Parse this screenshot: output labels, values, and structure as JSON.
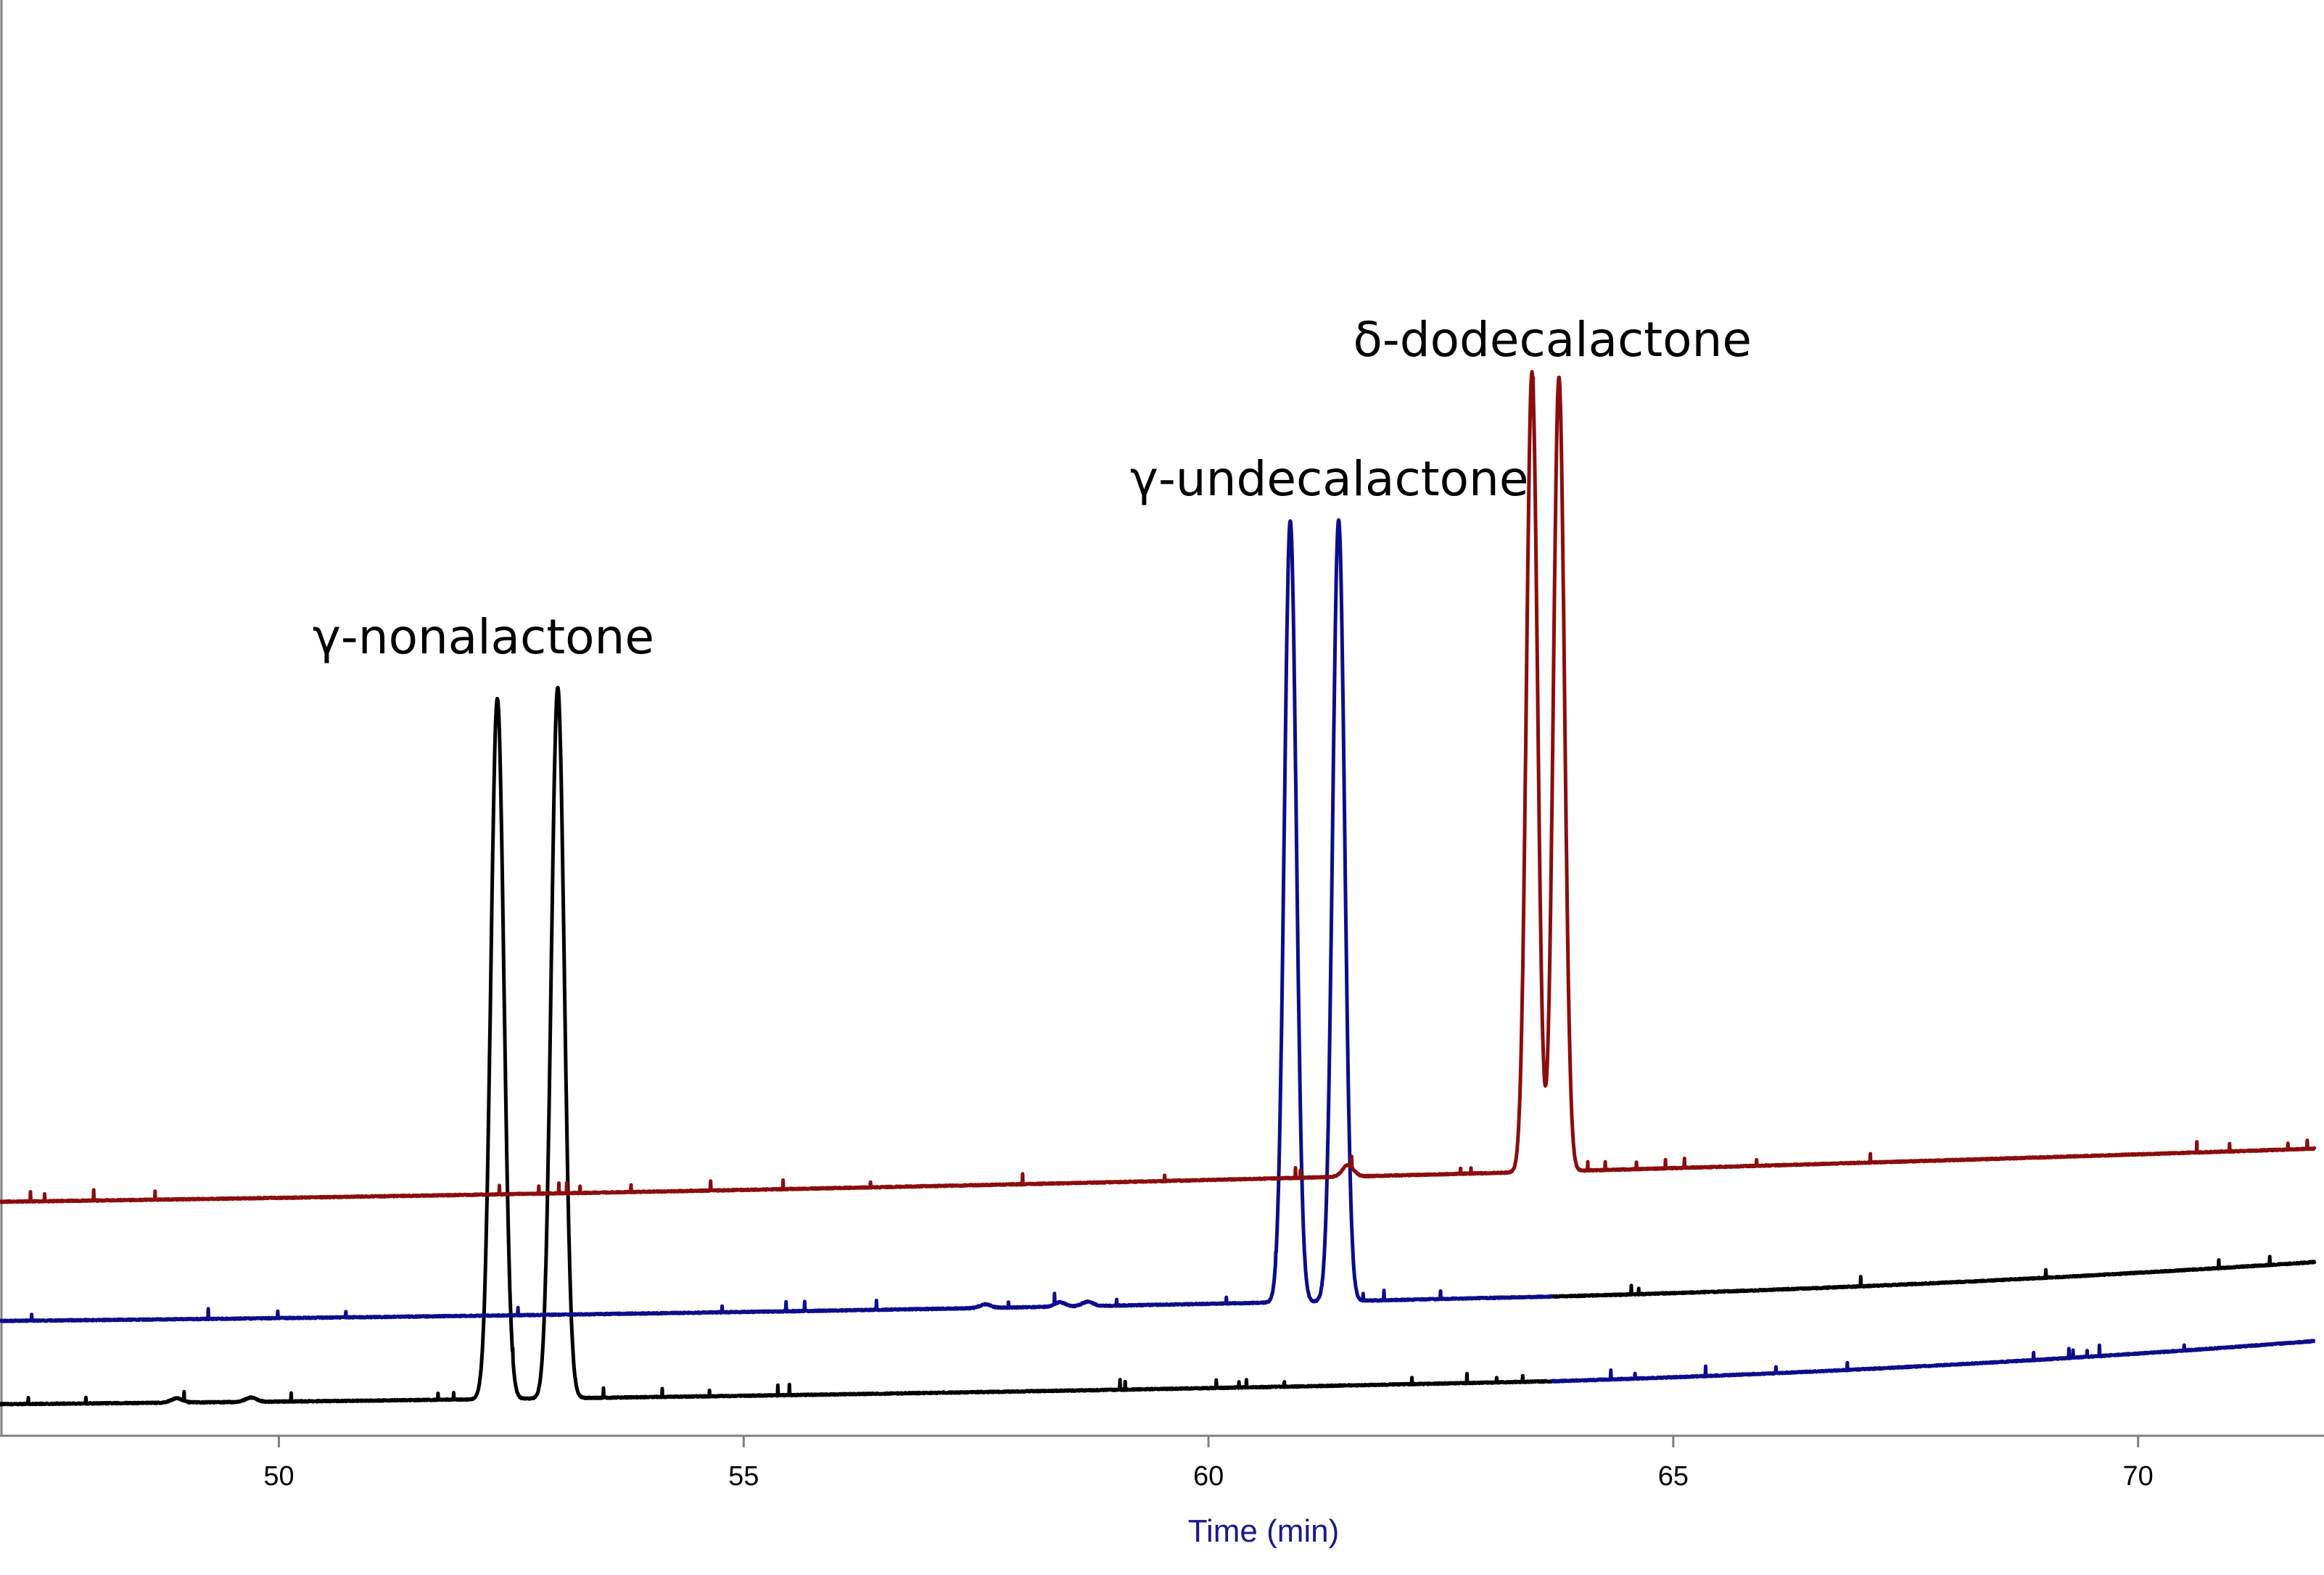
{
  "chart_data": {
    "type": "line",
    "title": "",
    "xlabel": "Time (min)",
    "ylabel": "",
    "xlim": [
      47.0,
      72.0
    ],
    "ylim": [
      0,
      100
    ],
    "xticks": [
      50,
      55,
      60,
      65,
      70
    ],
    "grid": false,
    "legend": "none",
    "colors": {
      "xlabel": "#1a1a8c",
      "axis": "#808080"
    },
    "annotations": [
      {
        "text": "γ-nonalactone",
        "x": 52.2,
        "y": 54.5
      },
      {
        "text": "γ-undecalactone",
        "x": 61.3,
        "y": 65.5
      },
      {
        "text": "δ-dodecalactone",
        "x": 63.7,
        "y": 75.2
      }
    ],
    "series": [
      {
        "color": "#000000",
        "baseline": [
          [
            47.0,
            2.2
          ],
          [
            63.7,
            3.8
          ]
        ],
        "peaks": [
          {
            "x": 52.35,
            "height": 48.8,
            "width": 0.07
          },
          {
            "x": 53.0,
            "height": 49.5,
            "width": 0.07
          }
        ],
        "bumps": [
          [
            48.9,
            0.3
          ],
          [
            49.7,
            0.3
          ]
        ]
      },
      {
        "color": "#000000",
        "baseline": [
          [
            63.7,
            9.7
          ],
          [
            71.9,
            12.1
          ]
        ],
        "peaks": [],
        "bumps": []
      },
      {
        "color": "#0d0d8a",
        "baseline": [
          [
            47.0,
            8.0
          ],
          [
            63.7,
            9.7
          ]
        ],
        "peaks": [
          {
            "x": 60.88,
            "height": 54.4,
            "width": 0.065
          },
          {
            "x": 61.4,
            "height": 54.4,
            "width": 0.065
          }
        ],
        "bumps": [
          [
            57.6,
            0.25
          ],
          [
            58.4,
            0.3
          ],
          [
            58.7,
            0.3
          ]
        ]
      },
      {
        "color": "#0d0d8a",
        "baseline": [
          [
            63.7,
            3.8
          ],
          [
            71.9,
            6.6
          ]
        ],
        "peaks": [],
        "bumps": []
      },
      {
        "color": "#8b0d0d",
        "baseline": [
          [
            47.0,
            16.3
          ],
          [
            71.9,
            20.0
          ]
        ],
        "peaks": [
          {
            "x": 63.48,
            "height": 55.7,
            "width": 0.06
          },
          {
            "x": 63.77,
            "height": 55.3,
            "width": 0.06
          }
        ],
        "bumps": [
          [
            61.5,
            0.8
          ]
        ]
      }
    ]
  }
}
